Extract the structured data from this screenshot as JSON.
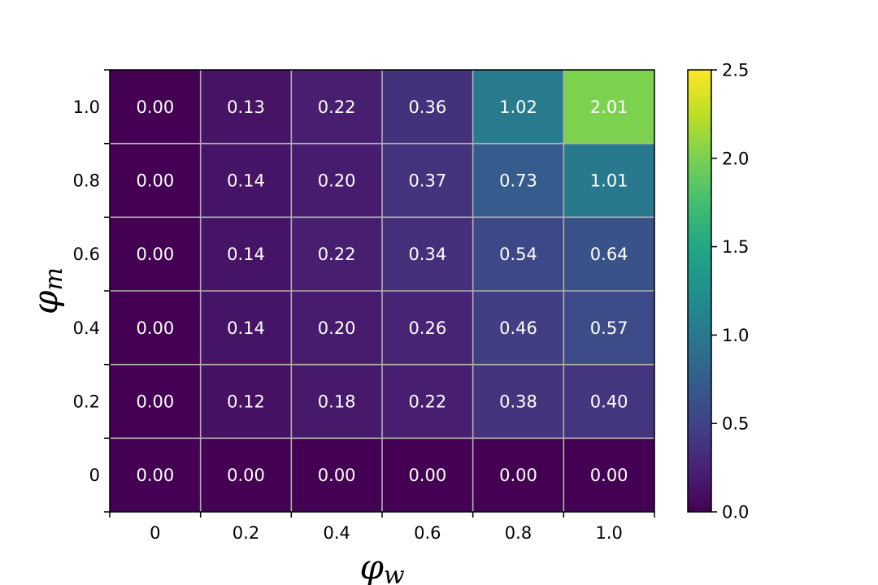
{
  "chart_data": {
    "type": "heatmap",
    "x_categories": [
      "0",
      "0.2",
      "0.4",
      "0.6",
      "0.8",
      "1.0"
    ],
    "y_categories": [
      "1.0",
      "0.8",
      "0.6",
      "0.4",
      "0.2",
      "0"
    ],
    "values": [
      [
        0.0,
        0.13,
        0.22,
        0.36,
        1.02,
        2.01
      ],
      [
        0.0,
        0.14,
        0.2,
        0.37,
        0.73,
        1.01
      ],
      [
        0.0,
        0.14,
        0.22,
        0.34,
        0.54,
        0.64
      ],
      [
        0.0,
        0.14,
        0.2,
        0.26,
        0.46,
        0.57
      ],
      [
        0.0,
        0.12,
        0.18,
        0.22,
        0.38,
        0.4
      ],
      [
        0.0,
        0.0,
        0.0,
        0.0,
        0.0,
        0.0
      ]
    ],
    "cell_labels": [
      [
        "0.00",
        "0.13",
        "0.22",
        "0.36",
        "1.02",
        "2.01"
      ],
      [
        "0.00",
        "0.14",
        "0.20",
        "0.37",
        "0.73",
        "1.01"
      ],
      [
        "0.00",
        "0.14",
        "0.22",
        "0.34",
        "0.54",
        "0.64"
      ],
      [
        "0.00",
        "0.14",
        "0.20",
        "0.26",
        "0.46",
        "0.57"
      ],
      [
        "0.00",
        "0.12",
        "0.18",
        "0.22",
        "0.38",
        "0.40"
      ],
      [
        "0.00",
        "0.00",
        "0.00",
        "0.00",
        "0.00",
        "0.00"
      ]
    ],
    "xlabel_symbol": "φ",
    "xlabel_subscript": "w",
    "ylabel_symbol": "φ",
    "ylabel_subscript": "m",
    "colormap": "viridis",
    "color_range": [
      0.0,
      2.5
    ],
    "colorbar_ticks": [
      "0.0",
      "0.5",
      "1.0",
      "1.5",
      "2.0",
      "2.5"
    ],
    "colorbar_tick_values": [
      0.0,
      0.5,
      1.0,
      1.5,
      2.0,
      2.5
    ],
    "grid": true,
    "grid_color": "#b0b0b0"
  }
}
